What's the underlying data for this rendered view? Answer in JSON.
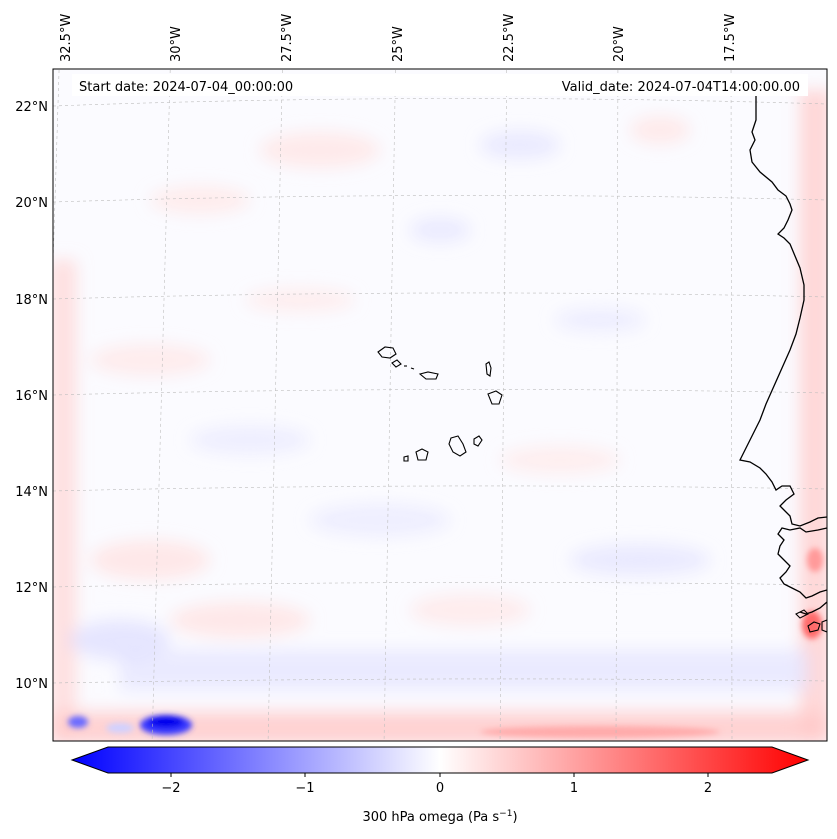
{
  "header": {
    "start_date": "Start date: 2024-07-04_00:00:00",
    "valid_date": "Valid_date: 2024-07-04T14:00:00.00"
  },
  "map": {
    "longitude_labels": [
      "32.5°W",
      "30°W",
      "27.5°W",
      "25°W",
      "22.5°W",
      "20°W",
      "17.5°W"
    ],
    "latitude_labels": [
      "22°N",
      "20°N",
      "18°N",
      "16°N",
      "14°N",
      "12°N",
      "10°N"
    ],
    "features": [
      "Cape Verde islands",
      "West African coastline"
    ]
  },
  "colorbar": {
    "tick_labels": [
      "−2",
      "−1",
      "0",
      "1",
      "2"
    ],
    "label_main": "300 hPa omega (Pa s",
    "label_sup": "−1",
    "label_end": ")",
    "range": [
      -2.7,
      2.7
    ],
    "colors": {
      "negative": "#0000ff",
      "zero": "#ffffff",
      "positive": "#ff0000"
    }
  },
  "chart_data": {
    "type": "heatmap",
    "title": "",
    "variable": "300 hPa omega (Pa s−1)",
    "colormap": "bwr",
    "vmin": -2.7,
    "vmax": 2.7,
    "ticks": [
      -2,
      -1,
      0,
      1,
      2
    ],
    "lon_ticks": [
      -32.5,
      -30,
      -27.5,
      -25,
      -22.5,
      -20,
      -17.5
    ],
    "lat_ticks": [
      22,
      20,
      18,
      16,
      14,
      12,
      10
    ],
    "notes": "Field mostly near zero (faint blue/red noise); stronger negative values near 30°W 9.5°N, positive values along domain boundaries."
  }
}
